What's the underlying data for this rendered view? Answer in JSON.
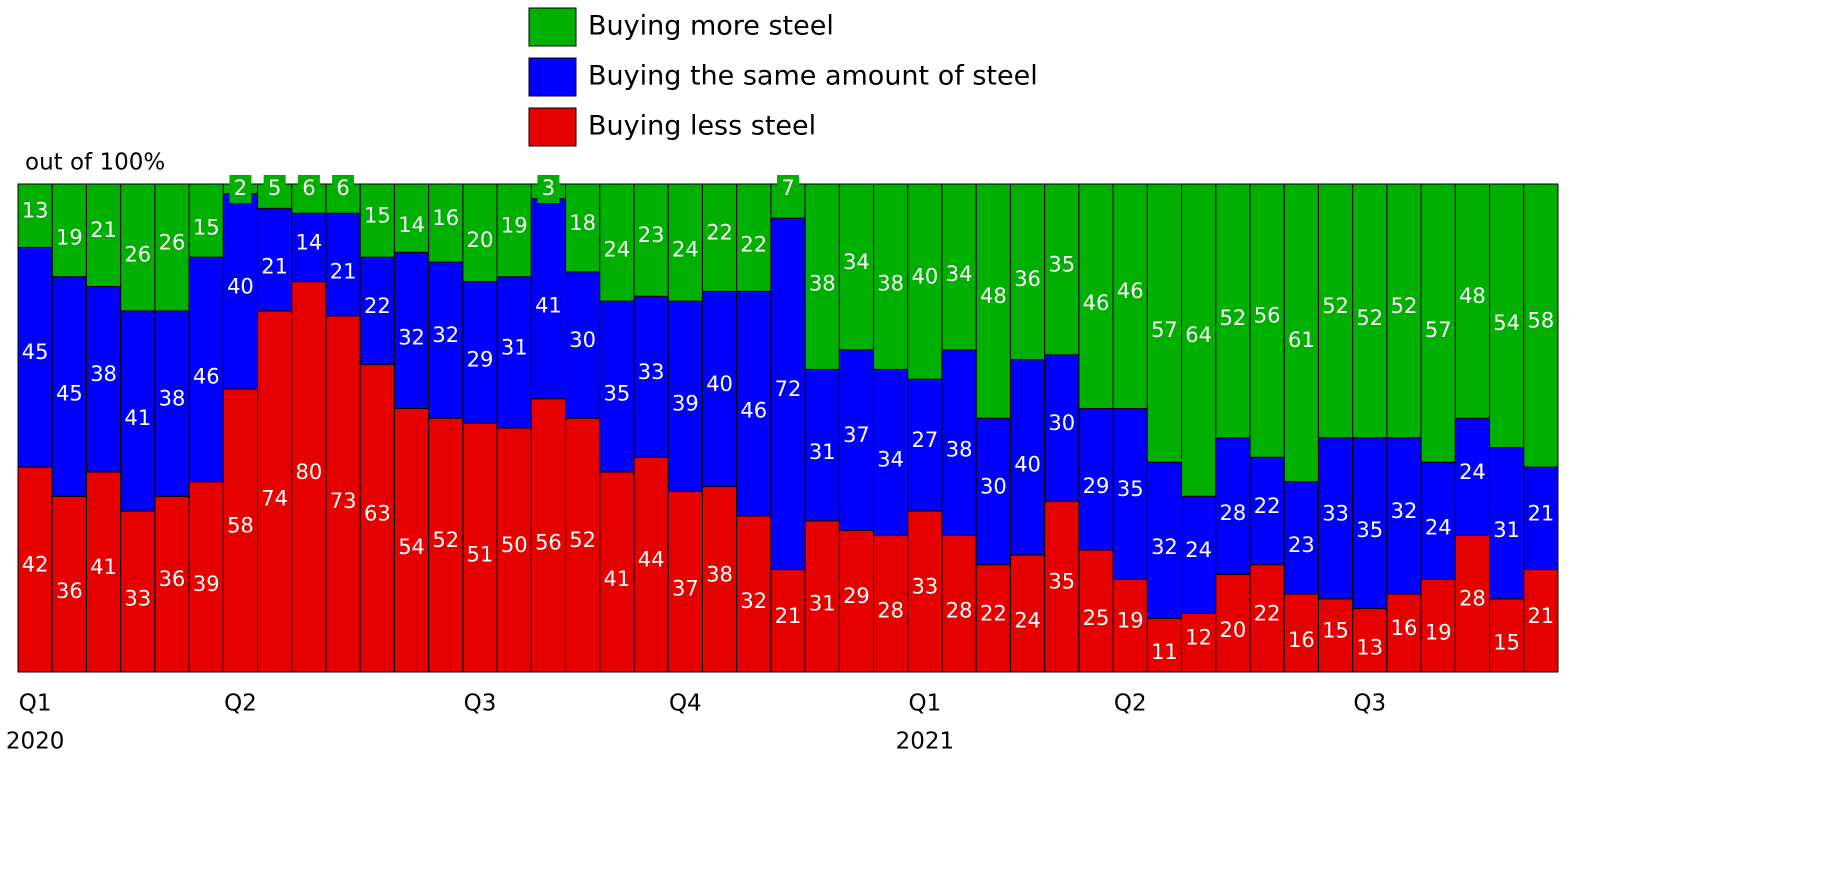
{
  "chart_data": {
    "type": "stacked_bar",
    "y_axis_label": "out of 100%",
    "categories": [
      "Q1",
      null,
      null,
      null,
      null,
      null,
      "Q2",
      null,
      null,
      null,
      null,
      null,
      null,
      "Q3",
      null,
      null,
      null,
      null,
      null,
      "Q4",
      null,
      null,
      null,
      null,
      null,
      null,
      "Q1",
      null,
      null,
      null,
      null,
      null,
      "Q2",
      null,
      null,
      null,
      null,
      null,
      null,
      "Q3",
      null,
      null,
      null,
      null,
      null
    ],
    "years": [
      "2020",
      null,
      null,
      null,
      null,
      null,
      null,
      null,
      null,
      null,
      null,
      null,
      null,
      null,
      null,
      null,
      null,
      null,
      null,
      null,
      null,
      null,
      null,
      null,
      null,
      null,
      "2021",
      null,
      null,
      null,
      null,
      null,
      null,
      null,
      null,
      null,
      null,
      null,
      null,
      null,
      null,
      null,
      null,
      null,
      null
    ],
    "ylim": [
      0,
      100
    ],
    "series": [
      {
        "name": "Buying less steel",
        "color": "#e60000",
        "values": [
          42,
          36,
          41,
          33,
          36,
          39,
          58,
          74,
          80,
          73,
          63,
          54,
          52,
          51,
          50,
          56,
          52,
          41,
          44,
          37,
          38,
          32,
          21,
          31,
          29,
          28,
          33,
          28,
          22,
          24,
          35,
          25,
          19,
          11,
          12,
          20,
          22,
          16,
          15,
          13,
          16,
          19,
          28,
          15,
          21
        ]
      },
      {
        "name": "Buying the same amount of steel",
        "color": "#0000ff",
        "values": [
          45,
          45,
          38,
          41,
          38,
          46,
          40,
          21,
          14,
          21,
          22,
          32,
          32,
          29,
          31,
          41,
          30,
          35,
          33,
          39,
          40,
          46,
          72,
          31,
          37,
          34,
          27,
          38,
          30,
          40,
          30,
          29,
          35,
          32,
          24,
          28,
          22,
          23,
          33,
          35,
          32,
          24,
          24,
          31,
          21
        ]
      },
      {
        "name": "Buying more steel",
        "color": "#00b000",
        "values": [
          13,
          19,
          21,
          26,
          26,
          15,
          2,
          5,
          6,
          6,
          15,
          14,
          16,
          20,
          19,
          3,
          18,
          24,
          23,
          24,
          22,
          22,
          7,
          38,
          34,
          38,
          40,
          34,
          48,
          36,
          35,
          46,
          46,
          57,
          64,
          52,
          56,
          61,
          52,
          52,
          52,
          57,
          48,
          54,
          58
        ]
      }
    ]
  }
}
